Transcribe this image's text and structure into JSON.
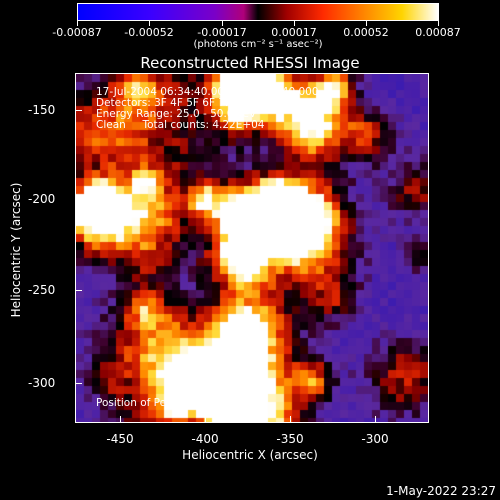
{
  "colorbar": {
    "labels": [
      "-0.00087",
      "-0.00052",
      "-0.00017",
      "0.00017",
      "0.00052",
      "0.00087"
    ],
    "units": "(photons cm⁻² s⁻¹ asec⁻²)"
  },
  "title": "Reconstructed RHESSI Image",
  "info": {
    "line1": "17-Jul-2004 06:34:40.000 to 06:40:40.000",
    "line2": "Detectors: 3F 4F 5F 6F 7F 8F, Att 0",
    "line3": "Energy Range: 25.0 - 50.0 keV",
    "line4": "Clean     Total counts: 4.22E+04"
  },
  "peak": "Position of Peak = [-394,-307]",
  "axes": {
    "x_ticks": [
      "-450",
      "-400",
      "-350",
      "-300"
    ],
    "y_ticks": [
      "-150",
      "-200",
      "-250",
      "-300"
    ],
    "xlabel": "Heliocentric X (arcsec)",
    "ylabel": "Heliocentric Y (arcsec)"
  },
  "timestamp": "1-May-2022 23:27",
  "colors": {
    "low": "#0000ff",
    "mid": "#000000",
    "high": "#ffffff",
    "hot": "#ff3300"
  }
}
